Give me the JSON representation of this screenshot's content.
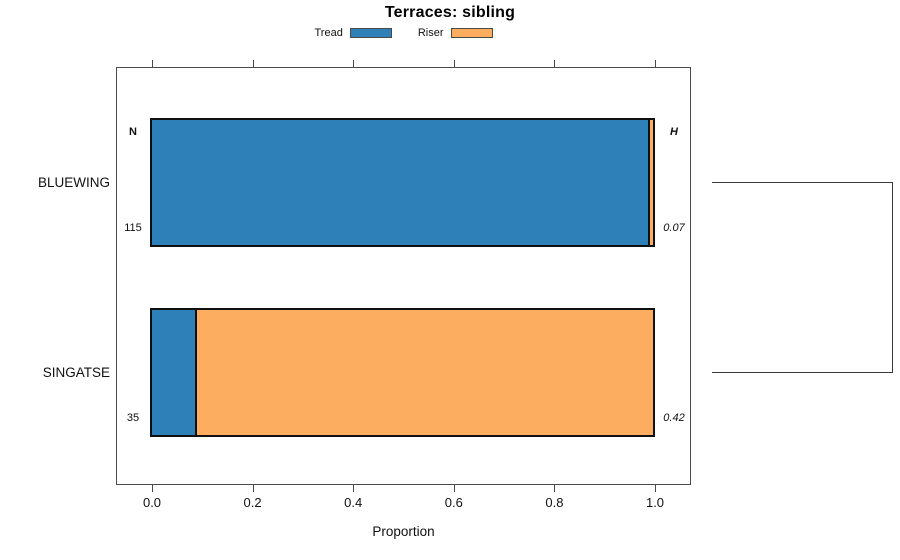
{
  "title": "Terraces: sibling",
  "legend": [
    {
      "label": "Tread",
      "color": "#2E80B9"
    },
    {
      "label": "Riser",
      "color": "#FCAD60"
    }
  ],
  "axis": {
    "label": "Proportion"
  },
  "column_headers": {
    "left": "N",
    "right": "H"
  },
  "chart_data": {
    "type": "bar",
    "orientation": "horizontal",
    "stacked": true,
    "title": "Terraces: sibling",
    "xlabel": "Proportion",
    "xlim": [
      0,
      1
    ],
    "xticks": [
      "0.0",
      "0.2",
      "0.4",
      "0.6",
      "0.8",
      "1.0"
    ],
    "grid": false,
    "legend_position": "top",
    "categories": [
      "BLUEWING",
      "SINGATSE"
    ],
    "series": [
      {
        "name": "Tread",
        "color": "#2E80B9",
        "values": [
          0.991,
          0.086
        ]
      },
      {
        "name": "Riser",
        "color": "#FCAD60",
        "values": [
          0.009,
          0.914
        ]
      }
    ],
    "row_annotations": [
      {
        "category": "BLUEWING",
        "N": "115",
        "H": "0.07"
      },
      {
        "category": "SINGATSE",
        "N": "35",
        "H": "0.42"
      }
    ],
    "right_marginal": "bracket joining BLUEWING and SINGATSE rows"
  }
}
